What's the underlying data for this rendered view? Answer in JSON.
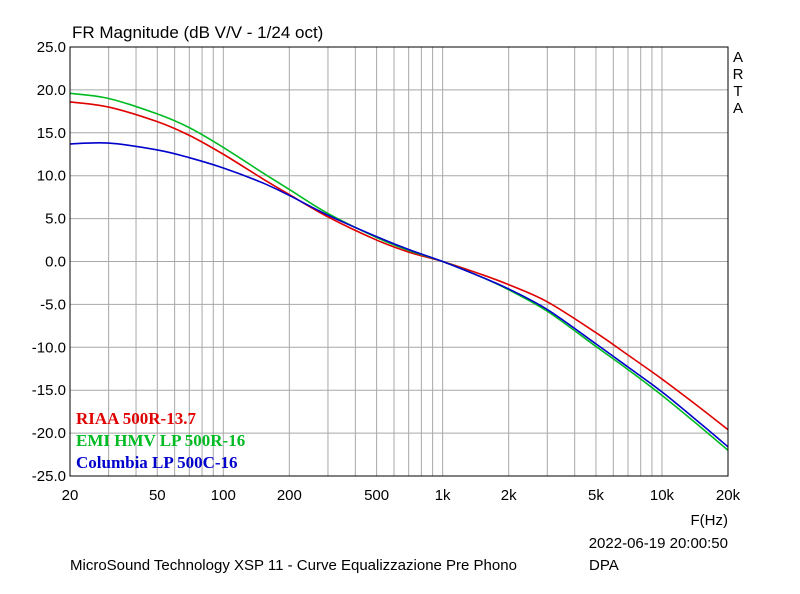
{
  "chart_data": {
    "type": "line",
    "title": "FR Magnitude (dB V/V - 1/24 oct)",
    "xlabel": "F(Hz)",
    "ylabel": "",
    "x_scale": "log",
    "xlim": [
      20,
      20000
    ],
    "ylim": [
      -25,
      25
    ],
    "x_ticks": [
      20,
      50,
      100,
      200,
      500,
      1000,
      2000,
      5000,
      10000,
      20000
    ],
    "x_tick_labels": [
      "20",
      "50",
      "100",
      "200",
      "500",
      "1k",
      "2k",
      "5k",
      "10k",
      "20k"
    ],
    "y_ticks": [
      25,
      20,
      15,
      10,
      5,
      0,
      -5,
      -10,
      -15,
      -20,
      -25
    ],
    "y_tick_labels": [
      "25.0",
      "20.0",
      "15.0",
      "10.0",
      "5.0",
      "0.0",
      "-5.0",
      "-10.0",
      "-15.0",
      "-20.0",
      "-25.0"
    ],
    "grid": true,
    "legend_position": "bottom-left",
    "side_label": "ARTA",
    "timestamp": "2022-06-19  20:00:50",
    "footer_left": "MicroSound Technology XSP 11 - Curve Equalizzazione Pre Phono",
    "footer_right": "DPA",
    "series": [
      {
        "name": "RIAA 500R-13.7",
        "color": "#e00000",
        "x": [
          20,
          30,
          50,
          70,
          100,
          150,
          200,
          300,
          500,
          700,
          1000,
          1500,
          2000,
          3000,
          5000,
          7000,
          10000,
          15000,
          20000
        ],
        "y": [
          18.6,
          18.0,
          16.3,
          14.7,
          12.5,
          9.7,
          7.8,
          5.2,
          2.5,
          1.1,
          0.0,
          -1.5,
          -2.7,
          -4.7,
          -8.3,
          -10.9,
          -13.7,
          -17.1,
          -19.6
        ]
      },
      {
        "name": "EMI HMV LP 500R-16",
        "color": "#00bb22",
        "x": [
          20,
          30,
          50,
          70,
          100,
          150,
          200,
          300,
          500,
          700,
          1000,
          1500,
          2000,
          3000,
          5000,
          7000,
          10000,
          15000,
          20000
        ],
        "y": [
          19.6,
          19.0,
          17.2,
          15.6,
          13.3,
          10.4,
          8.4,
          5.6,
          2.8,
          1.3,
          0.0,
          -1.8,
          -3.3,
          -5.8,
          -9.9,
          -12.6,
          -15.6,
          -19.3,
          -22.0
        ]
      },
      {
        "name": "Columbia LP 500C-16",
        "color": "#0000cc",
        "x": [
          20,
          30,
          50,
          70,
          100,
          150,
          200,
          300,
          500,
          700,
          1000,
          1500,
          2000,
          3000,
          5000,
          7000,
          10000,
          15000,
          20000
        ],
        "y": [
          13.7,
          13.8,
          13.0,
          12.1,
          10.9,
          9.2,
          7.7,
          5.4,
          2.9,
          1.4,
          0.0,
          -1.8,
          -3.2,
          -5.6,
          -9.6,
          -12.3,
          -15.2,
          -18.9,
          -21.6
        ]
      }
    ]
  }
}
